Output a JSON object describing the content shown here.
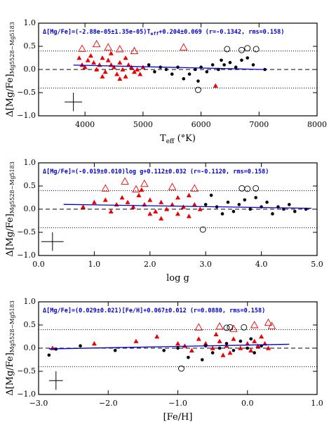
{
  "chart_data": [
    {
      "type": "scatter",
      "annotation": "Δ[Mg/Fe]=(-2.88e-05±1.35e-05)T",
      "annotation_sub": "eff",
      "annotation_tail": "+0.204±0.069 (r=-0.1342, rms=0.158)",
      "xlabel": "T",
      "xlabel_sub": "eff",
      "xlabel_tail": " (°K)",
      "ylabel": "Δ[Mg/Fe]",
      "ylabel_sub": "Mg5528−Mg5183",
      "xlim": [
        3200,
        8000
      ],
      "ylim": [
        -1.0,
        1.0
      ],
      "xticks": [
        4000,
        5000,
        6000,
        7000,
        8000
      ],
      "yticks": [
        {
          "value": -1.0,
          "label": "−1.0"
        },
        {
          "value": -0.5,
          "label": "−0.5"
        },
        {
          "value": 0,
          "label": "0.0"
        },
        {
          "value": 0.5,
          "label": "0.5"
        },
        {
          "value": 1.0,
          "label": "1.0"
        }
      ],
      "dotted_lines": [
        0.4,
        -0.4
      ],
      "dashed_line": 0,
      "fit_line": {
        "color": "#0000cc",
        "x": [
          3800,
          7100
        ],
        "y": [
          0.095,
          0.0
        ]
      },
      "error_bar": {
        "x": 3800,
        "y": -0.7,
        "xerr": 150,
        "yerr": 0.2
      },
      "series": [
        {
          "color": "#ee0000",
          "marker": "triangle",
          "filled": true,
          "x": [
            3900,
            3950,
            4000,
            4050,
            4100,
            4150,
            4200,
            4250,
            4300,
            4350,
            4400,
            4450,
            4500,
            4550,
            4600,
            4650,
            4700,
            4750,
            4800,
            4850,
            4900,
            4950,
            5000,
            4450,
            4300,
            4600,
            4700,
            6250
          ],
          "values": [
            0.25,
            0.1,
            0.05,
            0.2,
            0.3,
            0.15,
            0.0,
            0.1,
            0.25,
            -0.05,
            0.2,
            0.1,
            0.05,
            -0.1,
            0.15,
            0.0,
            -0.15,
            0.1,
            0.05,
            -0.05,
            0.0,
            -0.1,
            0.05,
            0.35,
            -0.15,
            -0.2,
            0.25,
            -0.35
          ]
        },
        {
          "color": "#000000",
          "marker": "circle",
          "filled": true,
          "x": [
            5100,
            5200,
            5300,
            5400,
            5500,
            5600,
            5700,
            5800,
            5900,
            6000,
            6100,
            6200,
            6300,
            6400,
            6500,
            6600,
            6700,
            6800,
            6900,
            7100,
            5950,
            6350
          ],
          "values": [
            0.1,
            -0.05,
            0.05,
            0.0,
            -0.1,
            0.05,
            -0.2,
            -0.1,
            0.0,
            0.05,
            -0.05,
            0.1,
            0.0,
            0.1,
            0.15,
            0.05,
            0.2,
            0.25,
            0.1,
            0.0,
            -0.25,
            0.2
          ]
        },
        {
          "color": "#ee0000",
          "marker": "triangle",
          "filled": false,
          "x": [
            3950,
            4200,
            4400,
            4600,
            5700,
            4850
          ],
          "values": [
            0.45,
            0.55,
            0.48,
            0.44,
            0.48,
            0.4
          ]
        },
        {
          "color": "#000000",
          "marker": "circle",
          "filled": false,
          "x": [
            6450,
            6700,
            6800,
            6950,
            5950
          ],
          "values": [
            0.44,
            0.42,
            0.46,
            0.44,
            -0.44
          ]
        }
      ]
    },
    {
      "type": "scatter",
      "annotation": "Δ[Mg/Fe]=(-0.019±0.010)log g+0.112±0.032 (r=-0.1120, rms=0.158)",
      "xlabel": "log g",
      "ylabel": "Δ[Mg/Fe]",
      "ylabel_sub": "Mg5528−Mg5183",
      "xlim": [
        0,
        5
      ],
      "ylim": [
        -1.0,
        1.0
      ],
      "xticks": [
        {
          "value": 0,
          "label": "0.0"
        },
        {
          "value": 1,
          "label": "1.0"
        },
        {
          "value": 2,
          "label": "2.0"
        },
        {
          "value": 3,
          "label": "3.0"
        },
        {
          "value": 4,
          "label": "4.0"
        },
        {
          "value": 5,
          "label": "5.0"
        }
      ],
      "yticks": [
        {
          "value": -1.0,
          "label": "−1.0"
        },
        {
          "value": -0.5,
          "label": "−0.5"
        },
        {
          "value": 0,
          "label": "0.0"
        },
        {
          "value": 0.5,
          "label": "0.5"
        },
        {
          "value": 1.0,
          "label": "1.0"
        }
      ],
      "dotted_lines": [
        0.4,
        -0.4
      ],
      "dashed_line": 0,
      "fit_line": {
        "color": "#0000cc",
        "x": [
          0.45,
          4.9
        ],
        "y": [
          0.103,
          0.019
        ]
      },
      "error_bar": {
        "x": 0.25,
        "y": -0.7,
        "xerr": 0.2,
        "yerr": 0.2
      },
      "series": [
        {
          "color": "#ee0000",
          "marker": "triangle",
          "filled": true,
          "x": [
            1.0,
            1.2,
            1.4,
            1.5,
            1.6,
            1.7,
            1.8,
            1.9,
            2.0,
            2.1,
            2.2,
            2.3,
            2.4,
            2.5,
            2.5,
            2.6,
            2.7,
            2.8,
            2.9,
            2.2,
            1.3,
            0.8,
            2.0,
            2.7,
            1.85
          ],
          "values": [
            0.15,
            0.2,
            0.1,
            0.25,
            0.15,
            0.05,
            0.3,
            0.1,
            0.2,
            -0.05,
            0.15,
            0.0,
            0.1,
            -0.1,
            0.25,
            0.05,
            -0.15,
            0.1,
            0.0,
            -0.2,
            -0.05,
            0.05,
            -0.1,
            0.3,
            0.42
          ]
        },
        {
          "color": "#000000",
          "marker": "circle",
          "filled": true,
          "x": [
            3.0,
            3.2,
            3.4,
            3.5,
            3.6,
            3.7,
            3.8,
            3.9,
            4.0,
            4.1,
            4.2,
            4.3,
            4.4,
            4.5,
            4.6,
            3.3,
            3.1,
            4.8
          ],
          "values": [
            0.1,
            0.05,
            0.15,
            -0.05,
            0.1,
            0.2,
            0.0,
            0.25,
            0.05,
            0.15,
            -0.1,
            0.05,
            0.0,
            0.1,
            -0.05,
            -0.1,
            0.3,
            0.0
          ]
        },
        {
          "color": "#ee0000",
          "marker": "triangle",
          "filled": false,
          "x": [
            1.2,
            1.55,
            1.9,
            2.4,
            1.75,
            2.8
          ],
          "values": [
            0.45,
            0.6,
            0.55,
            0.48,
            0.43,
            0.45
          ]
        },
        {
          "color": "#000000",
          "marker": "circle",
          "filled": false,
          "x": [
            3.65,
            3.75,
            3.9,
            2.95
          ],
          "values": [
            0.45,
            0.44,
            0.45,
            -0.44
          ]
        }
      ]
    },
    {
      "type": "scatter",
      "annotation": "Δ[Mg/Fe]=(0.029±0.021)[Fe/H]+0.067±0.012 (r=0.0880, rms=0.158)",
      "xlabel": "[Fe/H]",
      "ylabel": "Δ[Mg/Fe]",
      "ylabel_sub": "Mg5528−Mg5183",
      "xlim": [
        -3,
        1
      ],
      "ylim": [
        -1.0,
        1.0
      ],
      "xticks": [
        {
          "value": -3,
          "label": "−3.0"
        },
        {
          "value": -2,
          "label": "−2.0"
        },
        {
          "value": -1,
          "label": "−1.0"
        },
        {
          "value": 0,
          "label": "0.0"
        },
        {
          "value": 1,
          "label": "1.0"
        }
      ],
      "yticks": [
        {
          "value": -1.0,
          "label": "−1.0"
        },
        {
          "value": -0.5,
          "label": "−0.5"
        },
        {
          "value": 0,
          "label": "0.0"
        },
        {
          "value": 0.5,
          "label": "0.5"
        },
        {
          "value": 1.0,
          "label": "1.0"
        }
      ],
      "dotted_lines": [
        0.4,
        -0.4
      ],
      "dashed_line": 0,
      "fit_line": {
        "color": "#0000cc",
        "x": [
          -2.85,
          0.6
        ],
        "y": [
          -0.016,
          0.084
        ]
      },
      "error_bar": {
        "x": -2.75,
        "y": -0.7,
        "xerr": 0.1,
        "yerr": 0.2
      },
      "series": [
        {
          "color": "#ee0000",
          "marker": "triangle",
          "filled": true,
          "x": [
            -2.8,
            -2.2,
            -1.6,
            -1.3,
            -1.0,
            -0.9,
            -0.8,
            -0.7,
            -0.6,
            -0.5,
            -0.45,
            -0.4,
            -0.3,
            -0.25,
            -0.2,
            -0.1,
            0.0,
            0.05,
            0.1,
            0.15,
            0.2,
            0.3,
            -0.35,
            0.25
          ],
          "values": [
            0.0,
            0.1,
            0.15,
            0.25,
            0.1,
            0.05,
            -0.05,
            0.2,
            0.1,
            0.0,
            0.3,
            0.15,
            0.05,
            -0.1,
            0.2,
            0.0,
            0.1,
            -0.05,
            0.15,
            0.05,
            0.25,
            0.0,
            -0.15,
            0.1
          ]
        },
        {
          "color": "#000000",
          "marker": "circle",
          "filled": true,
          "x": [
            -2.85,
            -2.75,
            -2.4,
            -1.9,
            -1.2,
            -1.0,
            -0.85,
            -0.6,
            -0.5,
            -0.4,
            -0.3,
            -0.2,
            -0.1,
            0.0,
            0.05,
            0.1,
            0.2,
            -0.65
          ],
          "values": [
            -0.15,
            -0.02,
            0.05,
            -0.05,
            -0.05,
            0.0,
            -0.2,
            0.05,
            -0.1,
            0.0,
            0.1,
            -0.05,
            0.15,
            0.0,
            0.2,
            -0.1,
            0.05,
            -0.25
          ]
        },
        {
          "color": "#ee0000",
          "marker": "triangle",
          "filled": false,
          "x": [
            -0.7,
            -0.4,
            -0.2,
            0.1,
            0.3,
            0.35
          ],
          "values": [
            0.45,
            0.47,
            0.42,
            0.5,
            0.55,
            0.48
          ]
        },
        {
          "color": "#000000",
          "marker": "circle",
          "filled": false,
          "x": [
            -0.3,
            -0.25,
            -0.05,
            -0.95
          ],
          "values": [
            0.44,
            0.45,
            0.45,
            -0.44
          ]
        }
      ]
    }
  ]
}
